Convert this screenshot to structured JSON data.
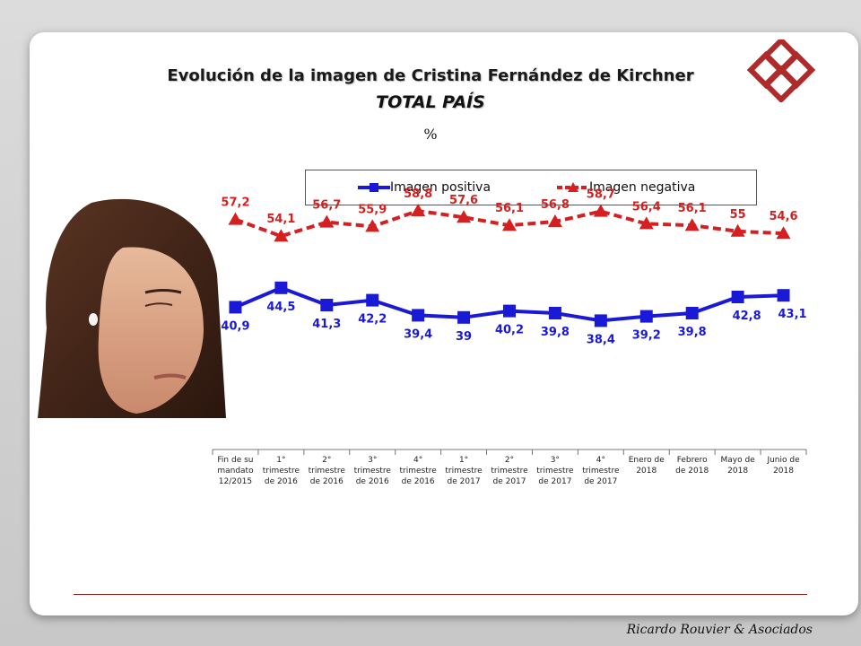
{
  "chart_data": {
    "type": "line",
    "title": "Evolución de la imagen de Cristina Fernández de Kirchner",
    "subtitle": "TOTAL PAÍS",
    "unit": "%",
    "categories": [
      "Fin de su mandato 12/2015",
      "1° trimestre de 2016",
      "2° trimestre de 2016",
      "3° trimestre de 2016",
      "4° trimestre de 2016",
      "1° trimestre de 2017",
      "2° trimestre de 2017",
      "3° trimestre de 2017",
      "4° trimestre de 2017",
      "Enero de 2018",
      "Febrero de 2018",
      "Mayo de 2018",
      "Junio de 2018"
    ],
    "category_lines": [
      [
        "Fin de su",
        "mandato",
        "12/2015"
      ],
      [
        "1°",
        "trimestre",
        "de 2016"
      ],
      [
        "2°",
        "trimestre",
        "de 2016"
      ],
      [
        "3°",
        "trimestre",
        "de 2016"
      ],
      [
        "4°",
        "trimestre",
        "de 2016"
      ],
      [
        "1°",
        "trimestre",
        "de 2017"
      ],
      [
        "2°",
        "trimestre",
        "de 2017"
      ],
      [
        "3°",
        "trimestre",
        "de 2017"
      ],
      [
        "4°",
        "trimestre",
        "de 2017"
      ],
      [
        "Enero de",
        "2018"
      ],
      [
        "Febrero",
        "de 2018"
      ],
      [
        "Mayo de",
        "2018"
      ],
      [
        "Junio de",
        "2018"
      ]
    ],
    "series": [
      {
        "name": "Imagen positiva",
        "color": "#1a1ad6",
        "marker": "square",
        "line": "solid",
        "values": [
          40.9,
          44.5,
          41.3,
          42.2,
          39.4,
          39,
          40.2,
          39.8,
          38.4,
          39.2,
          39.8,
          42.8,
          43.1
        ],
        "labels": [
          "40,9",
          "44,5",
          "41,3",
          "42,2",
          "39,4",
          "39",
          "40,2",
          "39,8",
          "38,4",
          "39,2",
          "39,8",
          "42,8",
          "43,1"
        ]
      },
      {
        "name": "Imagen negativa",
        "color": "#d42020",
        "marker": "triangle",
        "line": "dashed",
        "values": [
          57.2,
          54.1,
          56.7,
          55.9,
          58.8,
          57.6,
          56.1,
          56.8,
          58.7,
          56.4,
          56.1,
          55,
          54.6
        ],
        "labels": [
          "57,2",
          "54,1",
          "56,7",
          "55,9",
          "58,8",
          "57,6",
          "56,1",
          "56,8",
          "58,7",
          "56,4",
          "56,1",
          "55",
          "54,6"
        ]
      }
    ],
    "legend_position": "top",
    "grid": false
  },
  "footer": {
    "credit": "Ricardo Rouvier & Asociados"
  },
  "colors": {
    "positive": "#1a1ad6",
    "negative": "#d42020",
    "accent": "#8b1a1a"
  }
}
